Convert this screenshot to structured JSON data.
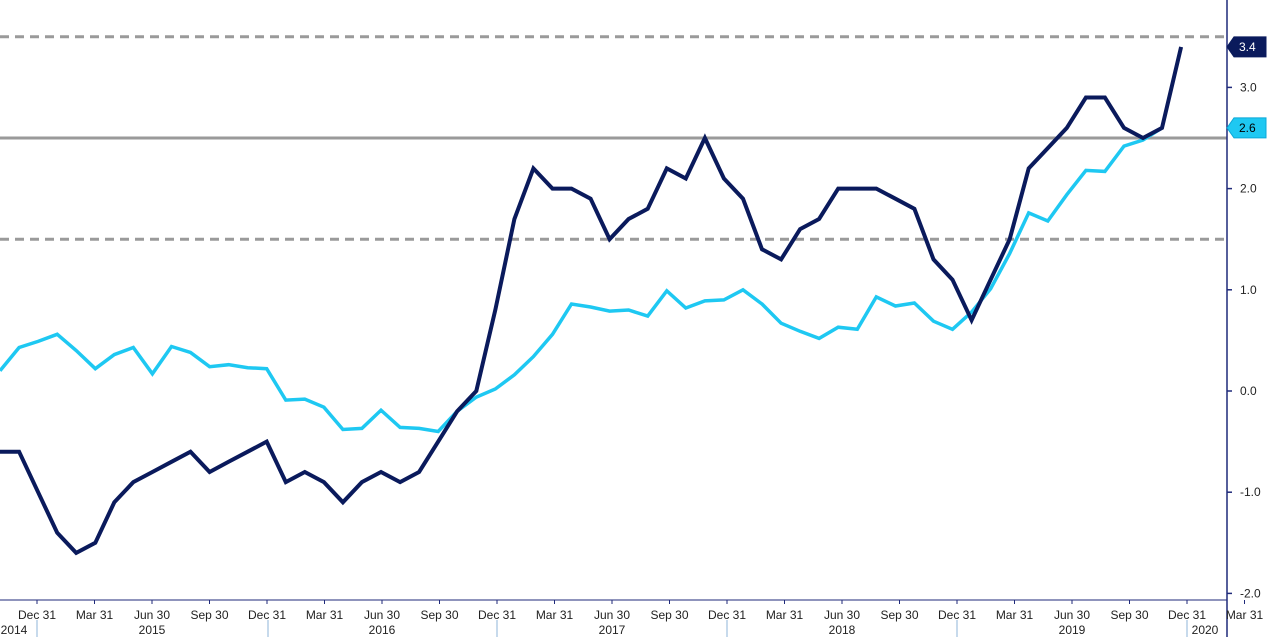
{
  "chart_data": {
    "type": "line",
    "ylim": [
      -2.0,
      3.4
    ],
    "y_ticks": [
      "3.0",
      "2.0",
      "1.0",
      "0.0",
      "-1.0",
      "-2.0"
    ],
    "y_tick_values": [
      3.0,
      2.0,
      1.0,
      0.0,
      -1.0,
      -2.0
    ],
    "x_month_labels": [
      "Dec 31",
      "Mar 31",
      "Jun 30",
      "Sep 30",
      "Dec 31",
      "Mar 31",
      "Jun 30",
      "Sep 30",
      "Dec 31",
      "Mar 31",
      "Jun 30",
      "Sep 30",
      "Dec 31",
      "Mar 31",
      "Jun 30",
      "Sep 30",
      "Dec 31",
      "Mar 31",
      "Jun 30",
      "Sep 30",
      "Dec 31",
      "Mar 31",
      "Jun 30",
      "Sep 30",
      "Dec 31"
    ],
    "x_year_labels": [
      "2014",
      "2015",
      "2016",
      "2017",
      "2018",
      "2019",
      "2020"
    ],
    "reference_lines": [
      {
        "value": 3.5,
        "style": "dashed",
        "color": "#9a9a9a"
      },
      {
        "value": 2.5,
        "style": "solid",
        "color": "#9a9a9a"
      },
      {
        "value": 1.5,
        "style": "dashed",
        "color": "#9a9a9a"
      }
    ],
    "grid": false,
    "series": [
      {
        "color": "#0a1a5c",
        "last_value_label": "3.4",
        "values": [
          -0.6,
          -0.6,
          -1.0,
          -1.4,
          -1.6,
          -1.5,
          -1.1,
          -0.9,
          -0.8,
          -0.7,
          -0.6,
          -0.8,
          -0.7,
          -0.6,
          -0.5,
          -0.9,
          -0.8,
          -0.9,
          -1.1,
          -0.9,
          -0.8,
          -0.9,
          -0.8,
          -0.5,
          -0.2,
          0.0,
          0.8,
          1.7,
          2.2,
          2.0,
          2.0,
          1.9,
          1.5,
          1.7,
          1.8,
          2.2,
          2.1,
          2.5,
          2.1,
          1.9,
          1.4,
          1.3,
          1.6,
          1.7,
          2.0,
          2.0,
          2.0,
          1.9,
          1.8,
          1.3,
          1.1,
          0.7,
          1.1,
          1.5,
          2.2,
          2.4,
          2.6,
          2.9,
          2.9,
          2.6,
          2.5,
          2.6,
          3.4
        ]
      },
      {
        "color": "#1ec8f2",
        "last_value_label": "2.6",
        "values": [
          0.2,
          0.43,
          0.49,
          0.56,
          0.4,
          0.22,
          0.36,
          0.43,
          0.17,
          0.44,
          0.38,
          0.24,
          0.26,
          0.23,
          0.22,
          -0.09,
          -0.08,
          -0.16,
          -0.38,
          -0.37,
          -0.19,
          -0.36,
          -0.37,
          -0.4,
          -0.2,
          -0.06,
          0.02,
          0.16,
          0.34,
          0.56,
          0.86,
          0.83,
          0.79,
          0.8,
          0.74,
          0.99,
          0.82,
          0.89,
          0.9,
          1.0,
          0.86,
          0.67,
          0.59,
          0.52,
          0.63,
          0.61,
          0.93,
          0.84,
          0.87,
          0.69,
          0.61,
          0.78,
          1.01,
          1.36,
          1.76,
          1.68,
          1.94,
          2.18,
          2.17,
          2.42,
          2.48,
          2.6
        ]
      }
    ]
  }
}
